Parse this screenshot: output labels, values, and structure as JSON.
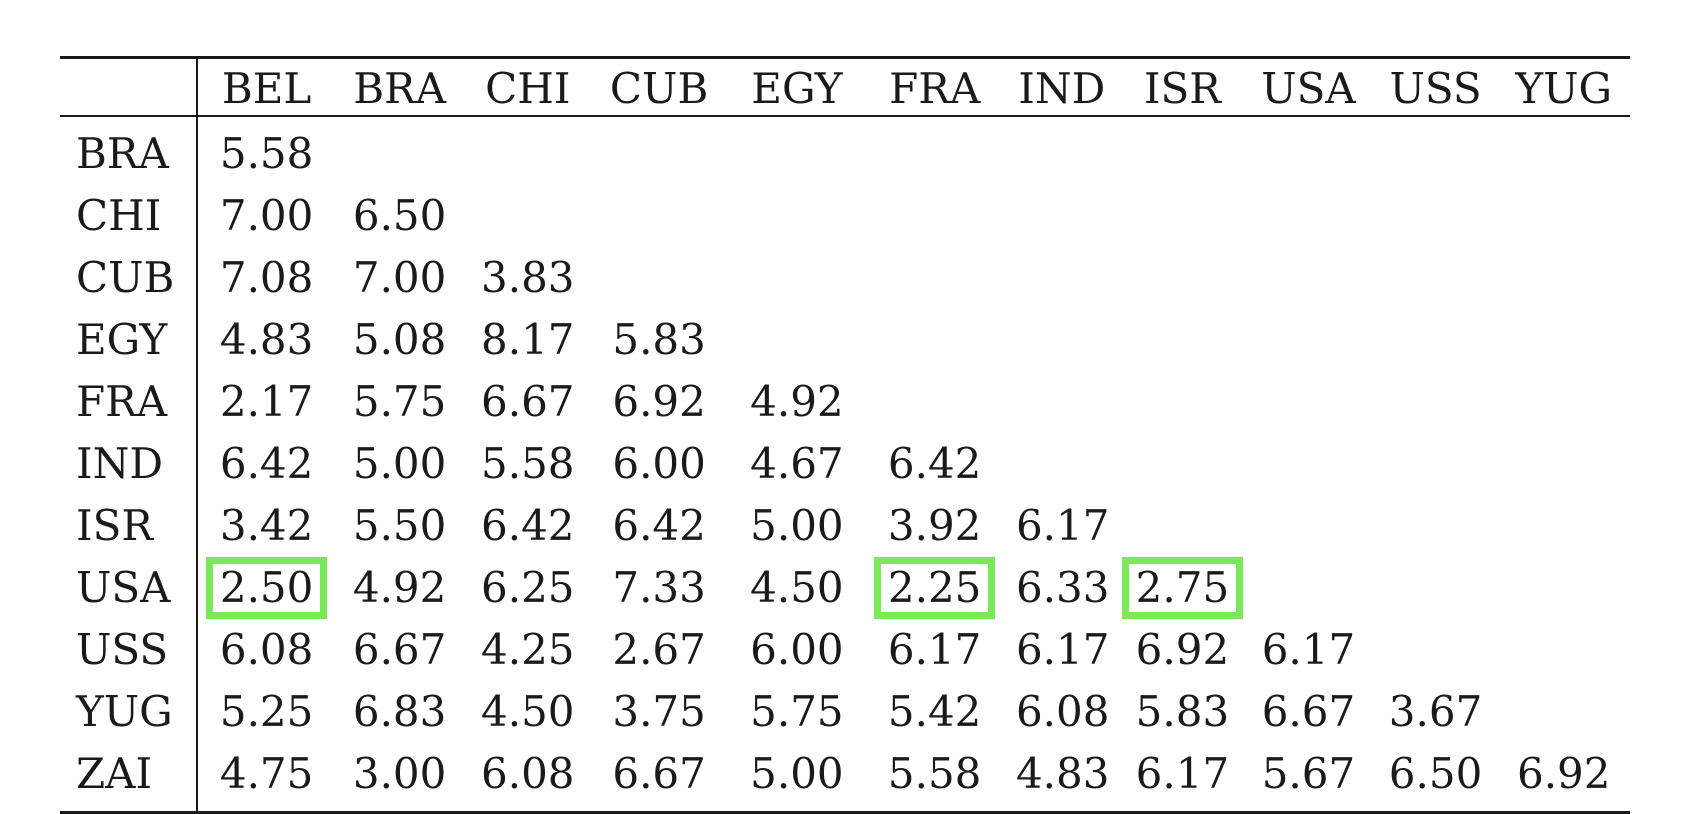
{
  "table": {
    "columns": [
      "BEL",
      "BRA",
      "CHI",
      "CUB",
      "EGY",
      "FRA",
      "IND",
      "ISR",
      "USA",
      "USS",
      "YUG"
    ],
    "highlight_color": "#7be85a",
    "rows": [
      {
        "label": "BRA",
        "values": [
          "5.58"
        ]
      },
      {
        "label": "CHI",
        "values": [
          "7.00",
          "6.50"
        ]
      },
      {
        "label": "CUB",
        "values": [
          "7.08",
          "7.00",
          "3.83"
        ]
      },
      {
        "label": "EGY",
        "values": [
          "4.83",
          "5.08",
          "8.17",
          "5.83"
        ]
      },
      {
        "label": "FRA",
        "values": [
          "2.17",
          "5.75",
          "6.67",
          "6.92",
          "4.92"
        ]
      },
      {
        "label": "IND",
        "values": [
          "6.42",
          "5.00",
          "5.58",
          "6.00",
          "4.67",
          "6.42"
        ]
      },
      {
        "label": "ISR",
        "values": [
          "3.42",
          "5.50",
          "6.42",
          "6.42",
          "5.00",
          "3.92",
          "6.17"
        ]
      },
      {
        "label": "USA",
        "values": [
          "2.50",
          "4.92",
          "6.25",
          "7.33",
          "4.50",
          "2.25",
          "6.33",
          "2.75"
        ],
        "highlighted": [
          0,
          5,
          7
        ]
      },
      {
        "label": "USS",
        "values": [
          "6.08",
          "6.67",
          "4.25",
          "2.67",
          "6.00",
          "6.17",
          "6.17",
          "6.92",
          "6.17"
        ]
      },
      {
        "label": "YUG",
        "values": [
          "5.25",
          "6.83",
          "4.50",
          "3.75",
          "5.75",
          "5.42",
          "6.08",
          "5.83",
          "6.67",
          "3.67"
        ]
      },
      {
        "label": "ZAI",
        "values": [
          "4.75",
          "3.00",
          "6.08",
          "6.67",
          "5.00",
          "5.58",
          "4.83",
          "6.17",
          "5.67",
          "6.50",
          "6.92"
        ]
      }
    ]
  }
}
